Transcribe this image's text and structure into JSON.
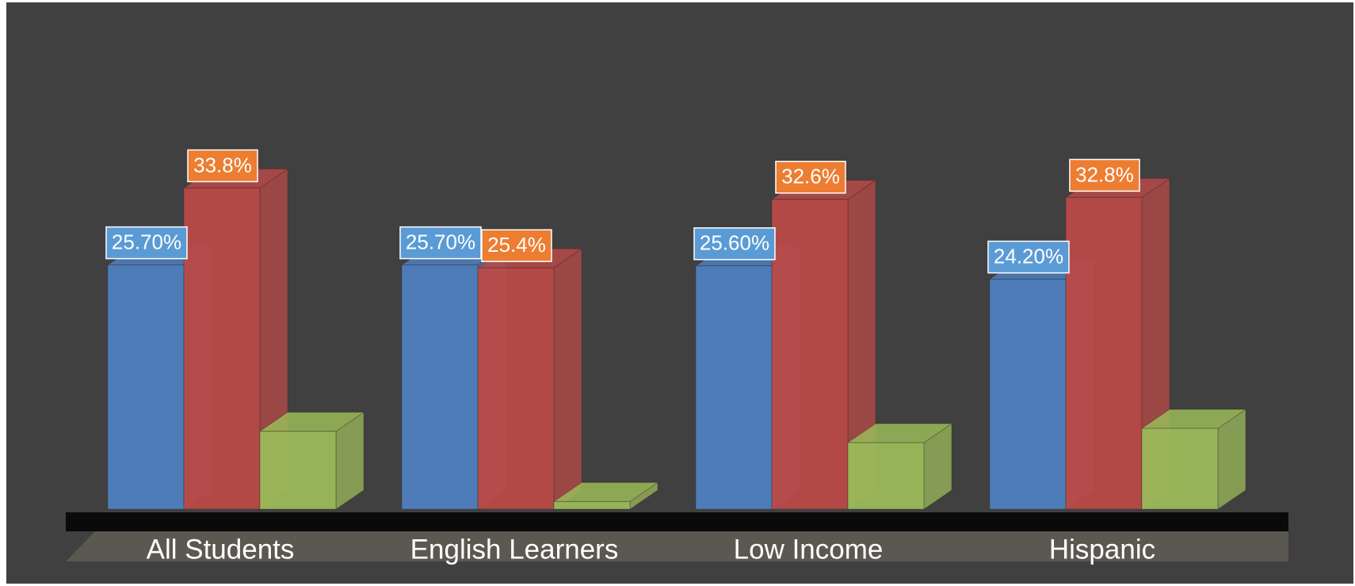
{
  "chart_data": {
    "type": "bar3d",
    "categories": [
      "All Students",
      "English Learners",
      "Low Income",
      "Hispanic"
    ],
    "series": [
      {
        "color": "#4f7fbf",
        "label_color": "#5b9bd5",
        "values": [
          25.7,
          25.7,
          25.6,
          24.2
        ],
        "value_labels": [
          "25.70%",
          "25.70%",
          "25.60%",
          "24.20%"
        ]
      },
      {
        "color": "#b94a48",
        "label_color": "#ed7d31",
        "values": [
          33.8,
          25.4,
          32.6,
          32.8
        ],
        "value_labels": [
          "33.8%",
          "25.4%",
          "32.6%",
          "32.8%"
        ]
      },
      {
        "color": "#9bbb59",
        "values": [
          8.2,
          0.8,
          7,
          8.5
        ]
      }
    ]
  }
}
